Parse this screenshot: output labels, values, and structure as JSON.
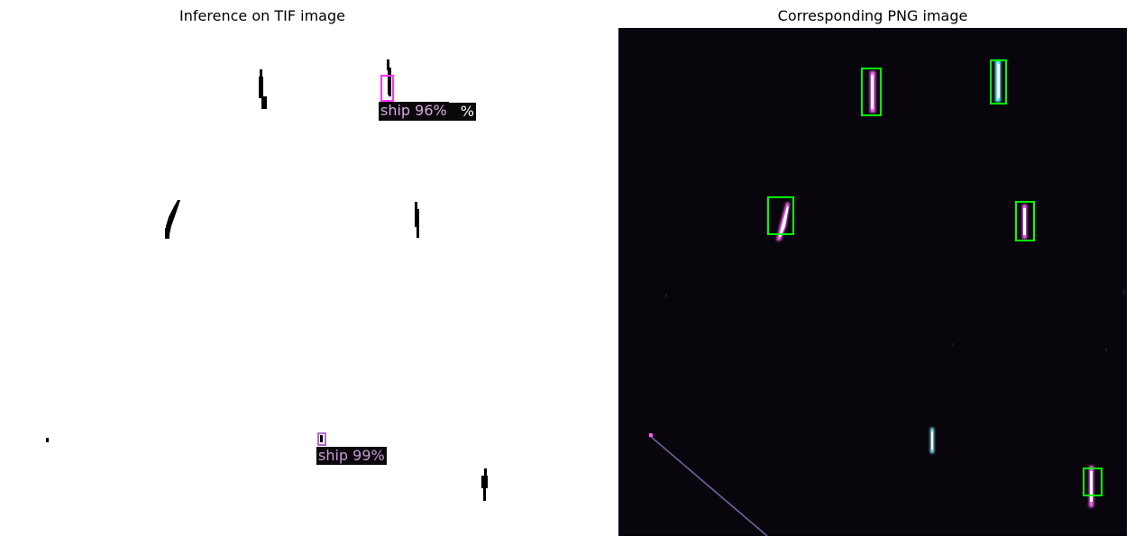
{
  "figure": {
    "left_title": "Inference on TIF image",
    "right_title": "Corresponding PNG image"
  },
  "tif_panel": {
    "background": "#ffffff",
    "ship_color": "#000000",
    "box_color_primary": "#ff33ff",
    "box_color_secondary": "#b06ad0",
    "detections": [
      {
        "label": "ship 96%",
        "ghost_suffix": "%"
      },
      {
        "label": "ship 99%"
      }
    ]
  },
  "png_panel": {
    "background": "#08060c",
    "box_color": "#00ff00",
    "detected_ships": 6
  }
}
